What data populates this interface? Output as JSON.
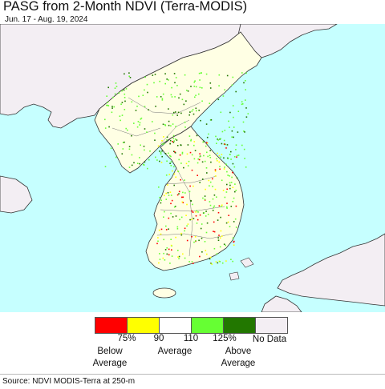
{
  "header": {
    "title": "PASG from 2-Month NDVI (Terra-MODIS)",
    "date_range": "Jun. 17 - Aug. 19, 2024"
  },
  "legend": {
    "swatches": [
      {
        "name": "below-75",
        "color": "#ff0000"
      },
      {
        "name": "75-90",
        "color": "#ffff00"
      },
      {
        "name": "90-110",
        "color": "#ffffff"
      },
      {
        "name": "110-125",
        "color": "#66ff33"
      },
      {
        "name": "above-125",
        "color": "#227700"
      },
      {
        "name": "no-data",
        "color": "#f3eef3"
      }
    ],
    "ticks": [
      "75%",
      "90",
      "110",
      "125%"
    ],
    "below_label_1": "Below",
    "below_label_2": "Average",
    "average_label": "Average",
    "above_label_1": "Above",
    "above_label_2": "Average",
    "nodata_label": "No Data"
  },
  "footer": {
    "source": "Source: NDVI MODIS-Terra at 250-m"
  },
  "map_colors": {
    "water": "#c6ffff",
    "land": "#ffffe4",
    "nodata_land": "#f3eef3",
    "border": "#333333"
  }
}
